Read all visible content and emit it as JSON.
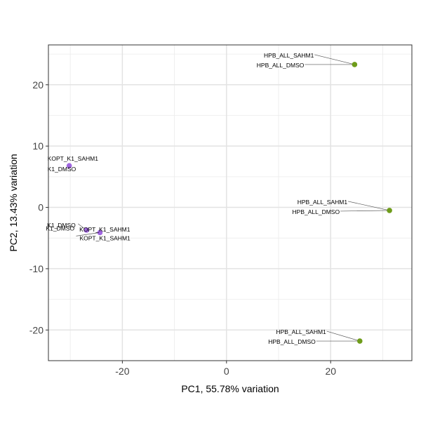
{
  "chart_data": {
    "type": "scatter",
    "title": "",
    "xlabel": "PC1, 55.78% variation",
    "ylabel": "PC2, 13.43% variation",
    "xlim": [
      -34.2,
      35.6
    ],
    "ylim": [
      -25.0,
      26.5
    ],
    "x_ticks": [
      -20,
      0,
      20
    ],
    "x_tick_labels": [
      "-20",
      "0",
      "20"
    ],
    "y_ticks": [
      -20,
      -10,
      0,
      10,
      20
    ],
    "y_tick_labels": [
      "-20",
      "-10",
      "0",
      "10",
      "20"
    ],
    "grid": true,
    "legend": "none",
    "colors": {
      "purple": "#a066e0",
      "green": "#6e9c1a",
      "connector": "#555555"
    },
    "points": [
      {
        "x": 24.6,
        "y": 23.3,
        "color": "green",
        "labels": [
          "HPB_ALL_SAHM1",
          "HPB_ALL_DMSO"
        ]
      },
      {
        "x": 31.3,
        "y": -0.5,
        "color": "green",
        "labels": [
          "HPB_ALL_SAHM1",
          "HPB_ALL_DMSO"
        ]
      },
      {
        "x": 25.6,
        "y": -21.8,
        "color": "green",
        "labels": [
          "HPB_ALL_SAHM1",
          "HPB_ALL_DMSO"
        ]
      },
      {
        "x": -30.2,
        "y": 6.8,
        "color": "purple",
        "labels": [
          "KOPT_K1_SAHM1",
          "K1_DMSO"
        ]
      },
      {
        "x": -26.9,
        "y": -3.7,
        "color": "purple",
        "labels": [
          "K1_DMSO",
          "KOPT_K1_SAHM1"
        ]
      },
      {
        "x": -24.3,
        "y": -4.1,
        "color": "purple",
        "labels": [
          "K1_DMSO",
          "KOPT_K1_SAHM1"
        ]
      }
    ]
  }
}
